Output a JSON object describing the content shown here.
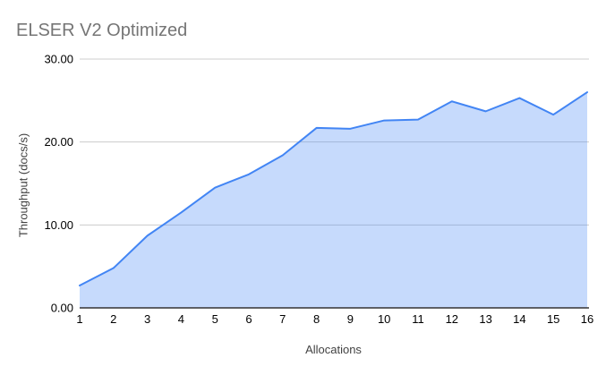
{
  "page": {
    "background": "#ffffff"
  },
  "chart_data": {
    "type": "area",
    "title": "ELSER V2 Optimized",
    "xlabel": "Allocations",
    "ylabel": "Throughput (docs/s)",
    "categories": [
      1,
      2,
      3,
      4,
      5,
      6,
      7,
      8,
      9,
      10,
      11,
      12,
      13,
      14,
      15,
      16
    ],
    "values": [
      2.7,
      4.8,
      8.7,
      11.5,
      14.5,
      16.1,
      18.4,
      21.7,
      21.6,
      22.6,
      22.7,
      24.9,
      23.7,
      25.3,
      23.3,
      26.0
    ],
    "series_name": "Throughput",
    "ylim": [
      0,
      30
    ],
    "yticks": [
      {
        "value": 0,
        "label": "0.00"
      },
      {
        "value": 10,
        "label": "10.00"
      },
      {
        "value": 20,
        "label": "20.00"
      },
      {
        "value": 30,
        "label": "30.00"
      }
    ],
    "grid": true,
    "legend": "none",
    "colors": {
      "series": "#4285f4",
      "fill_opacity": 0.3,
      "gridline": "#cccccc",
      "axis_line": "#333333",
      "title": "#757575",
      "tick_label": "#000000",
      "axis_title": "#424242",
      "background": "#ffffff"
    }
  }
}
